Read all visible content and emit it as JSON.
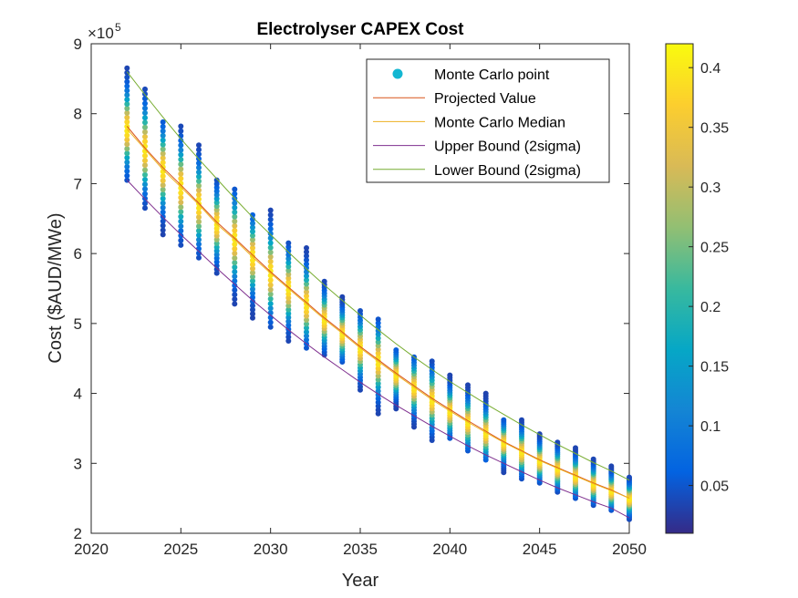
{
  "chart_data": {
    "type": "scatter",
    "title": "Electrolyser CAPEX Cost",
    "xlabel": "Year",
    "ylabel": "Cost ($AUD/MWe)",
    "exponent_label": "×10",
    "exponent_power": "5",
    "xlim": [
      2020,
      2050
    ],
    "ylim": [
      2,
      9
    ],
    "x_ticks": [
      "2020",
      "2025",
      "2030",
      "2035",
      "2040",
      "2045",
      "2050"
    ],
    "y_ticks": [
      "2",
      "3",
      "4",
      "5",
      "6",
      "7",
      "8",
      "9"
    ],
    "colorbar": {
      "colormap": "parula",
      "range": [
        0.01,
        0.42
      ],
      "ticks": [
        "0.05",
        "0.1",
        "0.15",
        "0.2",
        "0.25",
        "0.3",
        "0.35",
        "0.4"
      ]
    },
    "legend": {
      "placement": "top-right",
      "entries": [
        {
          "label": "Monte Carlo point",
          "color": "#13b7d2",
          "kind": "marker"
        },
        {
          "label": "Projected Value",
          "color": "#d95319",
          "kind": "line"
        },
        {
          "label": "Monte Carlo Median",
          "color": "#edb120",
          "kind": "line"
        },
        {
          "label": "Upper Bound (2sigma)",
          "color": "#7e2f8e",
          "kind": "line"
        },
        {
          "label": "Lower Bound (2sigma)",
          "color": "#77ac30",
          "kind": "line"
        }
      ]
    },
    "series": [
      {
        "name": "Monte Carlo point",
        "years": [
          2022,
          2023,
          2024,
          2025,
          2026,
          2027,
          2028,
          2029,
          2030,
          2031,
          2032,
          2033,
          2034,
          2035,
          2036,
          2037,
          2038,
          2039,
          2040,
          2041,
          2042,
          2043,
          2044,
          2045,
          2046,
          2047,
          2048,
          2049,
          2050
        ],
        "min": [
          7.05,
          6.65,
          6.27,
          6.12,
          5.94,
          5.72,
          5.28,
          5.08,
          4.95,
          4.75,
          4.65,
          4.55,
          4.45,
          4.05,
          3.71,
          3.78,
          3.52,
          3.33,
          3.36,
          3.18,
          3.05,
          2.87,
          2.78,
          2.72,
          2.59,
          2.5,
          2.4,
          2.33,
          2.2
        ],
        "max": [
          8.65,
          8.35,
          7.88,
          7.82,
          7.55,
          7.05,
          6.92,
          6.55,
          6.62,
          6.15,
          6.08,
          5.6,
          5.38,
          5.18,
          5.06,
          4.62,
          4.52,
          4.46,
          4.26,
          4.12,
          4.0,
          3.62,
          3.62,
          3.42,
          3.3,
          3.22,
          3.06,
          2.96,
          2.8
        ]
      },
      {
        "name": "Projected Value",
        "x": [
          2022,
          2023,
          2024,
          2025,
          2026,
          2027,
          2028,
          2029,
          2030,
          2031,
          2032,
          2033,
          2034,
          2035,
          2036,
          2037,
          2038,
          2039,
          2040,
          2041,
          2042,
          2043,
          2044,
          2045,
          2046,
          2047,
          2048,
          2049,
          2050
        ],
        "y": [
          7.82,
          7.51,
          7.23,
          6.98,
          6.72,
          6.45,
          6.22,
          5.98,
          5.74,
          5.52,
          5.3,
          5.08,
          4.88,
          4.67,
          4.48,
          4.29,
          4.11,
          3.93,
          3.77,
          3.61,
          3.46,
          3.31,
          3.18,
          3.05,
          2.94,
          2.83,
          2.72,
          2.62,
          2.5
        ]
      },
      {
        "name": "Monte Carlo Median",
        "x": [
          2022,
          2023,
          2024,
          2025,
          2026,
          2027,
          2028,
          2029,
          2030,
          2031,
          2032,
          2033,
          2034,
          2035,
          2036,
          2037,
          2038,
          2039,
          2040,
          2041,
          2042,
          2043,
          2044,
          2045,
          2046,
          2047,
          2048,
          2049,
          2050
        ],
        "y": [
          7.78,
          7.49,
          7.2,
          6.95,
          6.7,
          6.42,
          6.2,
          5.95,
          5.72,
          5.5,
          5.28,
          5.06,
          4.86,
          4.65,
          4.46,
          4.27,
          4.09,
          3.91,
          3.75,
          3.59,
          3.44,
          3.3,
          3.17,
          3.04,
          2.93,
          2.82,
          2.71,
          2.61,
          2.5
        ]
      },
      {
        "name": "Upper Bound (2sigma)",
        "x": [
          2022,
          2023,
          2024,
          2025,
          2026,
          2027,
          2028,
          2029,
          2030,
          2031,
          2032,
          2033,
          2034,
          2035,
          2036,
          2037,
          2038,
          2039,
          2040,
          2041,
          2042,
          2043,
          2044,
          2045,
          2046,
          2047,
          2048,
          2049,
          2050
        ],
        "y": [
          7.05,
          6.78,
          6.52,
          6.27,
          6.03,
          5.79,
          5.56,
          5.33,
          5.12,
          4.91,
          4.71,
          4.52,
          4.34,
          4.16,
          3.99,
          3.83,
          3.68,
          3.53,
          3.39,
          3.25,
          3.12,
          3.0,
          2.88,
          2.76,
          2.65,
          2.55,
          2.45,
          2.36,
          2.22
        ]
      },
      {
        "name": "Lower Bound (2sigma)",
        "x": [
          2022,
          2023,
          2024,
          2025,
          2026,
          2027,
          2028,
          2029,
          2030,
          2031,
          2032,
          2033,
          2034,
          2035,
          2036,
          2037,
          2038,
          2039,
          2040,
          2041,
          2042,
          2043,
          2044,
          2045,
          2046,
          2047,
          2048,
          2049,
          2050
        ],
        "y": [
          8.6,
          8.27,
          7.95,
          7.64,
          7.35,
          7.07,
          6.79,
          6.52,
          6.27,
          6.02,
          5.78,
          5.55,
          5.33,
          5.12,
          4.91,
          4.71,
          4.52,
          4.34,
          4.17,
          4.01,
          3.85,
          3.7,
          3.55,
          3.41,
          3.27,
          3.14,
          3.01,
          2.89,
          2.76
        ]
      }
    ]
  }
}
